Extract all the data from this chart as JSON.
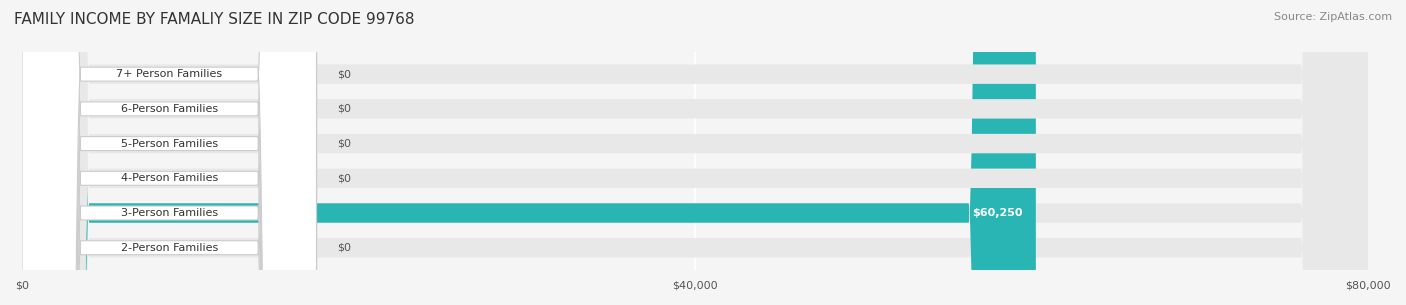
{
  "title": "FAMILY INCOME BY FAMALIY SIZE IN ZIP CODE 99768",
  "source": "Source: ZipAtlas.com",
  "categories": [
    "2-Person Families",
    "3-Person Families",
    "4-Person Families",
    "5-Person Families",
    "6-Person Families",
    "7+ Person Families"
  ],
  "values": [
    0,
    60250,
    0,
    0,
    0,
    0
  ],
  "bar_colors": [
    "#c9aed6",
    "#2ab5b5",
    "#b3b8e8",
    "#f4a7c0",
    "#f5c990",
    "#f5aca0"
  ],
  "label_colors": [
    "#c9aed6",
    "#2ab5b5",
    "#b3b8e8",
    "#f4a7c0",
    "#f5c990",
    "#f5aca0"
  ],
  "xlim": [
    0,
    80000
  ],
  "xticks": [
    0,
    40000,
    80000
  ],
  "xtick_labels": [
    "$0",
    "$40,000",
    "$80,000"
  ],
  "bar_height": 0.55,
  "background_color": "#f5f5f5",
  "bar_bg_color": "#e8e8e8",
  "title_fontsize": 11,
  "source_fontsize": 8,
  "label_fontsize": 8,
  "value_label_color_bar": "#ffffff",
  "value_label_color_empty": "#555555",
  "grid_color": "#ffffff",
  "highlight_value_label": "$60,250"
}
